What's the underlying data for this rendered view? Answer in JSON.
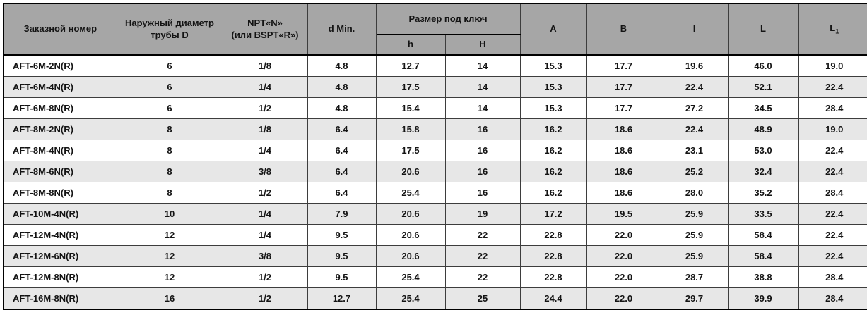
{
  "table": {
    "header": {
      "order_number": "Заказной номер",
      "outer_diameter": "Наружный диаметр\nтрубы D",
      "thread": "NPT«N»\n(или BSPT«R»)",
      "d_min": "d Min.",
      "wrench_group": "Размер под ключ",
      "wrench_h": "h",
      "wrench_H": "H",
      "col_A": "A",
      "col_B": "B",
      "col_l": "l",
      "col_L": "L",
      "col_L1_main": "L",
      "col_L1_sub": "1"
    },
    "rows": [
      [
        "AFT-6M-2N(R)",
        "6",
        "1/8",
        "4.8",
        "12.7",
        "14",
        "15.3",
        "17.7",
        "19.6",
        "46.0",
        "19.0"
      ],
      [
        "AFT-6M-4N(R)",
        "6",
        "1/4",
        "4.8",
        "17.5",
        "14",
        "15.3",
        "17.7",
        "22.4",
        "52.1",
        "22.4"
      ],
      [
        "AFT-6M-8N(R)",
        "6",
        "1/2",
        "4.8",
        "15.4",
        "14",
        "15.3",
        "17.7",
        "27.2",
        "34.5",
        "28.4"
      ],
      [
        "AFT-8M-2N(R)",
        "8",
        "1/8",
        "6.4",
        "15.8",
        "16",
        "16.2",
        "18.6",
        "22.4",
        "48.9",
        "19.0"
      ],
      [
        "AFT-8M-4N(R)",
        "8",
        "1/4",
        "6.4",
        "17.5",
        "16",
        "16.2",
        "18.6",
        "23.1",
        "53.0",
        "22.4"
      ],
      [
        "AFT-8M-6N(R)",
        "8",
        "3/8",
        "6.4",
        "20.6",
        "16",
        "16.2",
        "18.6",
        "25.2",
        "32.4",
        "22.4"
      ],
      [
        "AFT-8M-8N(R)",
        "8",
        "1/2",
        "6.4",
        "25.4",
        "16",
        "16.2",
        "18.6",
        "28.0",
        "35.2",
        "28.4"
      ],
      [
        "AFT-10M-4N(R)",
        "10",
        "1/4",
        "7.9",
        "20.6",
        "19",
        "17.2",
        "19.5",
        "25.9",
        "33.5",
        "22.4"
      ],
      [
        "AFT-12M-4N(R)",
        "12",
        "1/4",
        "9.5",
        "20.6",
        "22",
        "22.8",
        "22.0",
        "25.9",
        "58.4",
        "22.4"
      ],
      [
        "AFT-12M-6N(R)",
        "12",
        "3/8",
        "9.5",
        "20.6",
        "22",
        "22.8",
        "22.0",
        "25.9",
        "58.4",
        "22.4"
      ],
      [
        "AFT-12M-8N(R)",
        "12",
        "1/2",
        "9.5",
        "25.4",
        "22",
        "22.8",
        "22.0",
        "28.7",
        "38.8",
        "28.4"
      ],
      [
        "AFT-16M-8N(R)",
        "16",
        "1/2",
        "12.7",
        "25.4",
        "25",
        "24.4",
        "22.0",
        "29.7",
        "39.9",
        "28.4"
      ]
    ]
  },
  "colors": {
    "header_bg": "#a6a6a6",
    "stripe_bg": "#e7e7e7",
    "row_bg": "#ffffff",
    "outer_border": "#000000",
    "inner_border": "#3d3d3d"
  }
}
